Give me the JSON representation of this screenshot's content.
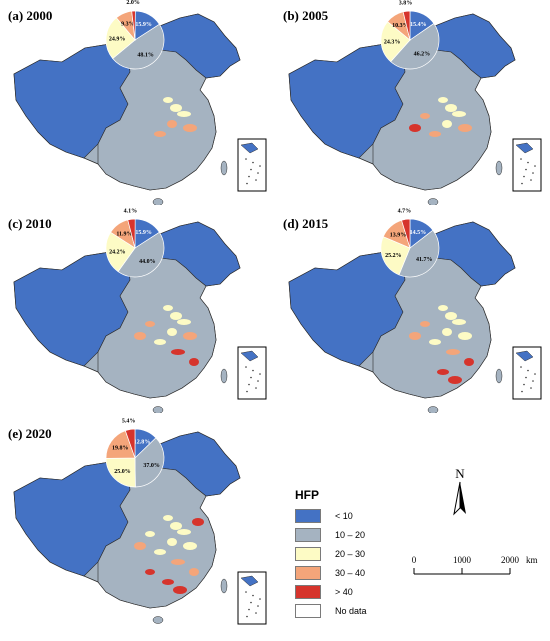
{
  "panels": [
    {
      "label": "(a) 2000",
      "slices": [
        {
          "category": "< 10",
          "pct": 15.9
        },
        {
          "category": "10 – 20",
          "pct": 48.1
        },
        {
          "category": "20 – 30",
          "pct": 24.9
        },
        {
          "category": "30 – 40",
          "pct": 9.3
        },
        {
          "category": "> 40",
          "pct": 2.0
        }
      ],
      "labels": [
        "15.9%",
        "48.1%",
        "24.9%",
        "9.3%",
        "2.0%"
      ]
    },
    {
      "label": "(b) 2005",
      "slices": [
        {
          "category": "< 10",
          "pct": 15.4
        },
        {
          "category": "10 – 20",
          "pct": 46.2
        },
        {
          "category": "20 – 30",
          "pct": 24.3
        },
        {
          "category": "30 – 40",
          "pct": 10.3
        },
        {
          "category": "> 40",
          "pct": 3.8
        }
      ],
      "labels": [
        "15.4%",
        "46.2%",
        "24.3%",
        "10.3%",
        "3.8%"
      ]
    },
    {
      "label": "(c) 2010",
      "slices": [
        {
          "category": "< 10",
          "pct": 15.9
        },
        {
          "category": "10 – 20",
          "pct": 44.0
        },
        {
          "category": "20 – 30",
          "pct": 24.2
        },
        {
          "category": "30 – 40",
          "pct": 11.9
        },
        {
          "category": "> 40",
          "pct": 4.1
        }
      ],
      "labels": [
        "15.9%",
        "44.0%",
        "24.2%",
        "11.9%",
        "4.1%"
      ]
    },
    {
      "label": "(d) 2015",
      "slices": [
        {
          "category": "< 10",
          "pct": 14.5
        },
        {
          "category": "10 – 20",
          "pct": 41.7
        },
        {
          "category": "20 – 30",
          "pct": 25.2
        },
        {
          "category": "30 – 40",
          "pct": 13.9
        },
        {
          "category": "> 40",
          "pct": 4.7
        }
      ],
      "labels": [
        "14.5%",
        "41.7%",
        "25.2%",
        "13.9%",
        "4.7%"
      ]
    },
    {
      "label": "(e) 2020",
      "slices": [
        {
          "category": "< 10",
          "pct": 12.8
        },
        {
          "category": "10 – 20",
          "pct": 37.0
        },
        {
          "category": "20 – 30",
          "pct": 25.0
        },
        {
          "category": "30 – 40",
          "pct": 19.8
        },
        {
          "category": "> 40",
          "pct": 5.4
        }
      ],
      "labels": [
        "12.8%",
        "37.0%",
        "25.0%",
        "19.8%",
        "5.4%"
      ]
    }
  ],
  "legend": {
    "title": "HFP",
    "items": [
      {
        "label": "< 10",
        "color": "#4472c4"
      },
      {
        "label": "10 – 20",
        "color": "#a5b3c1"
      },
      {
        "label": "20 – 30",
        "color": "#fdfbc5"
      },
      {
        "label": "30 – 40",
        "color": "#f4a57a"
      },
      {
        "label": "> 40",
        "color": "#d6342c"
      },
      {
        "label": "No data",
        "color": "#ffffff"
      }
    ]
  },
  "north_label": "N",
  "scale": {
    "ticks": [
      "0",
      "1000",
      "2000"
    ],
    "unit": "km"
  },
  "colors": {
    "lt10": "#4472c4",
    "b10_20": "#a5b3c1",
    "b20_30": "#fdfbc5",
    "b30_40": "#f4a57a",
    "gt40": "#d6342c",
    "boundary": "#2b2b2b"
  }
}
